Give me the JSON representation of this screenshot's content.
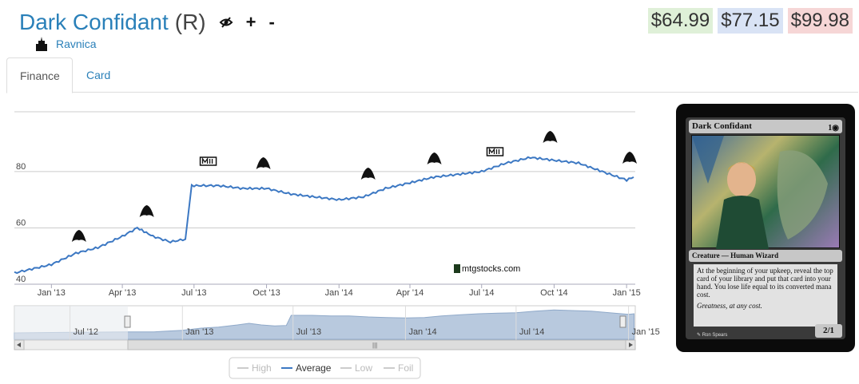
{
  "header": {
    "card_name": "Dark Confidant",
    "rarity": "(R)",
    "plus_label": "+",
    "minus_label": "-",
    "set_name": "Ravnica"
  },
  "prices": {
    "low": "$64.99",
    "avg": "$77.15",
    "high": "$99.98"
  },
  "tabs": [
    {
      "label": "Finance",
      "active": true
    },
    {
      "label": "Card",
      "active": false
    }
  ],
  "chart_data": {
    "type": "line",
    "series": [
      {
        "name": "Average",
        "color": "#3c78c3",
        "x": [
          "2012-11-15",
          "2012-12-01",
          "2013-01-01",
          "2013-02-01",
          "2013-03-01",
          "2013-04-01",
          "2013-04-20",
          "2013-05-10",
          "2013-06-01",
          "2013-06-20",
          "2013-06-28",
          "2013-07-10",
          "2013-08-01",
          "2013-09-01",
          "2013-10-01",
          "2013-11-01",
          "2013-12-01",
          "2014-01-01",
          "2014-02-01",
          "2014-03-01",
          "2014-04-01",
          "2014-05-01",
          "2014-06-01",
          "2014-07-01",
          "2014-08-01",
          "2014-09-01",
          "2014-10-01",
          "2014-11-01",
          "2014-12-01",
          "2015-01-01",
          "2015-01-10"
        ],
        "y": [
          44,
          45,
          47,
          51,
          53,
          57,
          60,
          57,
          55,
          56,
          75,
          75,
          75,
          74,
          74,
          72,
          71,
          70,
          71,
          74,
          76,
          78,
          79,
          80,
          83,
          85,
          84,
          83,
          80,
          77,
          78
        ]
      }
    ],
    "legend": [
      "High",
      "Average",
      "Low",
      "Foil"
    ],
    "y_ticks": [
      "40",
      "60",
      "80"
    ],
    "ylim": [
      40,
      100
    ],
    "x_ticks": [
      "Jan '13",
      "Apr '13",
      "Jul '13",
      "Oct '13",
      "Jan '14",
      "Apr '14",
      "Jul '14",
      "Oct '14",
      "Jan '15"
    ],
    "navigator_ticks": [
      "Jul '12",
      "Jan '13",
      "Jul '13",
      "Jan '14",
      "Jul '14",
      "Jan '15"
    ],
    "watermark": "mtgstocks.com",
    "set_markers": [
      "gatecrash-icon",
      "dragons-maze-icon",
      "m14-icon",
      "theros-icon",
      "born-of-the-gods-icon",
      "journey-into-nyx-icon",
      "m15-icon",
      "khans-icon",
      "fate-reforged-icon"
    ],
    "grid": true,
    "legend_placement": "bottom-center"
  },
  "card": {
    "name": "Dark Confidant",
    "cost": "1",
    "type_line": "Creature — Human Wizard",
    "rules_text": "At the beginning of your upkeep, reveal the top card of your library and put that card into your hand. You lose life equal to its converted mana cost.",
    "flavor": "Greatness, at any cost.",
    "artist": "Ron Spears",
    "pt": "2/1"
  }
}
